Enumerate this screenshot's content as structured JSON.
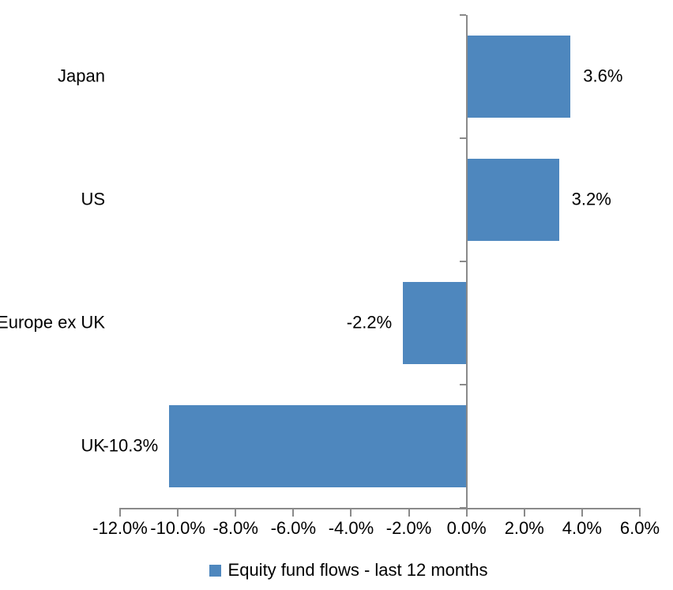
{
  "chart_data": {
    "type": "bar",
    "orientation": "horizontal",
    "title": "",
    "categories": [
      "Japan",
      "US",
      "Europe ex UK",
      "UK"
    ],
    "series": [
      {
        "name": "Equity fund flows - last 12 months",
        "values": [
          3.6,
          3.2,
          -2.2,
          -10.3
        ],
        "data_labels": [
          "3.6%",
          "3.2%",
          "-2.2%",
          "-10.3%"
        ],
        "color": "#4E87BE"
      }
    ],
    "xlim": [
      -12,
      6
    ],
    "x_ticks": [
      {
        "value": -12,
        "label": "-12.0%"
      },
      {
        "value": -10,
        "label": "-10.0%"
      },
      {
        "value": -8,
        "label": "-8.0%"
      },
      {
        "value": -6,
        "label": "-6.0%"
      },
      {
        "value": -4,
        "label": "-4.0%"
      },
      {
        "value": -2,
        "label": "-2.0%"
      },
      {
        "value": 0,
        "label": "0.0%"
      },
      {
        "value": 2,
        "label": "2.0%"
      },
      {
        "value": 4,
        "label": "4.0%"
      },
      {
        "value": 6,
        "label": "6.0%"
      }
    ],
    "grid": false,
    "legend_position": "bottom",
    "axis_color": "#8A8A8A",
    "text_color": "#000000",
    "background_color": "#FFFFFF"
  },
  "legend": {
    "label": "Equity fund flows - last 12 months",
    "swatch_color": "#4E87BE"
  }
}
